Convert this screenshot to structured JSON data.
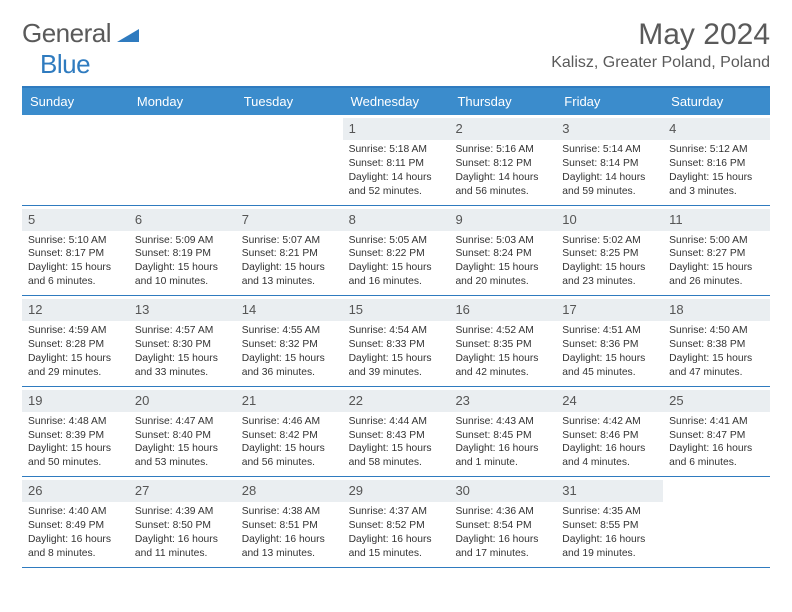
{
  "logo": {
    "general": "General",
    "blue": "Blue"
  },
  "title": "May 2024",
  "location": "Kalisz, Greater Poland, Poland",
  "weekdays": [
    "Sunday",
    "Monday",
    "Tuesday",
    "Wednesday",
    "Thursday",
    "Friday",
    "Saturday"
  ],
  "colors": {
    "header_bar": "#3b8ccc",
    "accent": "#2f7bbf",
    "daynum_bg": "#eaeef1",
    "text": "#333333",
    "logo_gray": "#5a5a5a"
  },
  "weeks": [
    [
      {
        "n": "",
        "sr": "",
        "ss": "",
        "dl": ""
      },
      {
        "n": "",
        "sr": "",
        "ss": "",
        "dl": ""
      },
      {
        "n": "",
        "sr": "",
        "ss": "",
        "dl": ""
      },
      {
        "n": "1",
        "sr": "Sunrise: 5:18 AM",
        "ss": "Sunset: 8:11 PM",
        "dl": "Daylight: 14 hours and 52 minutes."
      },
      {
        "n": "2",
        "sr": "Sunrise: 5:16 AM",
        "ss": "Sunset: 8:12 PM",
        "dl": "Daylight: 14 hours and 56 minutes."
      },
      {
        "n": "3",
        "sr": "Sunrise: 5:14 AM",
        "ss": "Sunset: 8:14 PM",
        "dl": "Daylight: 14 hours and 59 minutes."
      },
      {
        "n": "4",
        "sr": "Sunrise: 5:12 AM",
        "ss": "Sunset: 8:16 PM",
        "dl": "Daylight: 15 hours and 3 minutes."
      }
    ],
    [
      {
        "n": "5",
        "sr": "Sunrise: 5:10 AM",
        "ss": "Sunset: 8:17 PM",
        "dl": "Daylight: 15 hours and 6 minutes."
      },
      {
        "n": "6",
        "sr": "Sunrise: 5:09 AM",
        "ss": "Sunset: 8:19 PM",
        "dl": "Daylight: 15 hours and 10 minutes."
      },
      {
        "n": "7",
        "sr": "Sunrise: 5:07 AM",
        "ss": "Sunset: 8:21 PM",
        "dl": "Daylight: 15 hours and 13 minutes."
      },
      {
        "n": "8",
        "sr": "Sunrise: 5:05 AM",
        "ss": "Sunset: 8:22 PM",
        "dl": "Daylight: 15 hours and 16 minutes."
      },
      {
        "n": "9",
        "sr": "Sunrise: 5:03 AM",
        "ss": "Sunset: 8:24 PM",
        "dl": "Daylight: 15 hours and 20 minutes."
      },
      {
        "n": "10",
        "sr": "Sunrise: 5:02 AM",
        "ss": "Sunset: 8:25 PM",
        "dl": "Daylight: 15 hours and 23 minutes."
      },
      {
        "n": "11",
        "sr": "Sunrise: 5:00 AM",
        "ss": "Sunset: 8:27 PM",
        "dl": "Daylight: 15 hours and 26 minutes."
      }
    ],
    [
      {
        "n": "12",
        "sr": "Sunrise: 4:59 AM",
        "ss": "Sunset: 8:28 PM",
        "dl": "Daylight: 15 hours and 29 minutes."
      },
      {
        "n": "13",
        "sr": "Sunrise: 4:57 AM",
        "ss": "Sunset: 8:30 PM",
        "dl": "Daylight: 15 hours and 33 minutes."
      },
      {
        "n": "14",
        "sr": "Sunrise: 4:55 AM",
        "ss": "Sunset: 8:32 PM",
        "dl": "Daylight: 15 hours and 36 minutes."
      },
      {
        "n": "15",
        "sr": "Sunrise: 4:54 AM",
        "ss": "Sunset: 8:33 PM",
        "dl": "Daylight: 15 hours and 39 minutes."
      },
      {
        "n": "16",
        "sr": "Sunrise: 4:52 AM",
        "ss": "Sunset: 8:35 PM",
        "dl": "Daylight: 15 hours and 42 minutes."
      },
      {
        "n": "17",
        "sr": "Sunrise: 4:51 AM",
        "ss": "Sunset: 8:36 PM",
        "dl": "Daylight: 15 hours and 45 minutes."
      },
      {
        "n": "18",
        "sr": "Sunrise: 4:50 AM",
        "ss": "Sunset: 8:38 PM",
        "dl": "Daylight: 15 hours and 47 minutes."
      }
    ],
    [
      {
        "n": "19",
        "sr": "Sunrise: 4:48 AM",
        "ss": "Sunset: 8:39 PM",
        "dl": "Daylight: 15 hours and 50 minutes."
      },
      {
        "n": "20",
        "sr": "Sunrise: 4:47 AM",
        "ss": "Sunset: 8:40 PM",
        "dl": "Daylight: 15 hours and 53 minutes."
      },
      {
        "n": "21",
        "sr": "Sunrise: 4:46 AM",
        "ss": "Sunset: 8:42 PM",
        "dl": "Daylight: 15 hours and 56 minutes."
      },
      {
        "n": "22",
        "sr": "Sunrise: 4:44 AM",
        "ss": "Sunset: 8:43 PM",
        "dl": "Daylight: 15 hours and 58 minutes."
      },
      {
        "n": "23",
        "sr": "Sunrise: 4:43 AM",
        "ss": "Sunset: 8:45 PM",
        "dl": "Daylight: 16 hours and 1 minute."
      },
      {
        "n": "24",
        "sr": "Sunrise: 4:42 AM",
        "ss": "Sunset: 8:46 PM",
        "dl": "Daylight: 16 hours and 4 minutes."
      },
      {
        "n": "25",
        "sr": "Sunrise: 4:41 AM",
        "ss": "Sunset: 8:47 PM",
        "dl": "Daylight: 16 hours and 6 minutes."
      }
    ],
    [
      {
        "n": "26",
        "sr": "Sunrise: 4:40 AM",
        "ss": "Sunset: 8:49 PM",
        "dl": "Daylight: 16 hours and 8 minutes."
      },
      {
        "n": "27",
        "sr": "Sunrise: 4:39 AM",
        "ss": "Sunset: 8:50 PM",
        "dl": "Daylight: 16 hours and 11 minutes."
      },
      {
        "n": "28",
        "sr": "Sunrise: 4:38 AM",
        "ss": "Sunset: 8:51 PM",
        "dl": "Daylight: 16 hours and 13 minutes."
      },
      {
        "n": "29",
        "sr": "Sunrise: 4:37 AM",
        "ss": "Sunset: 8:52 PM",
        "dl": "Daylight: 16 hours and 15 minutes."
      },
      {
        "n": "30",
        "sr": "Sunrise: 4:36 AM",
        "ss": "Sunset: 8:54 PM",
        "dl": "Daylight: 16 hours and 17 minutes."
      },
      {
        "n": "31",
        "sr": "Sunrise: 4:35 AM",
        "ss": "Sunset: 8:55 PM",
        "dl": "Daylight: 16 hours and 19 minutes."
      },
      {
        "n": "",
        "sr": "",
        "ss": "",
        "dl": ""
      }
    ]
  ]
}
